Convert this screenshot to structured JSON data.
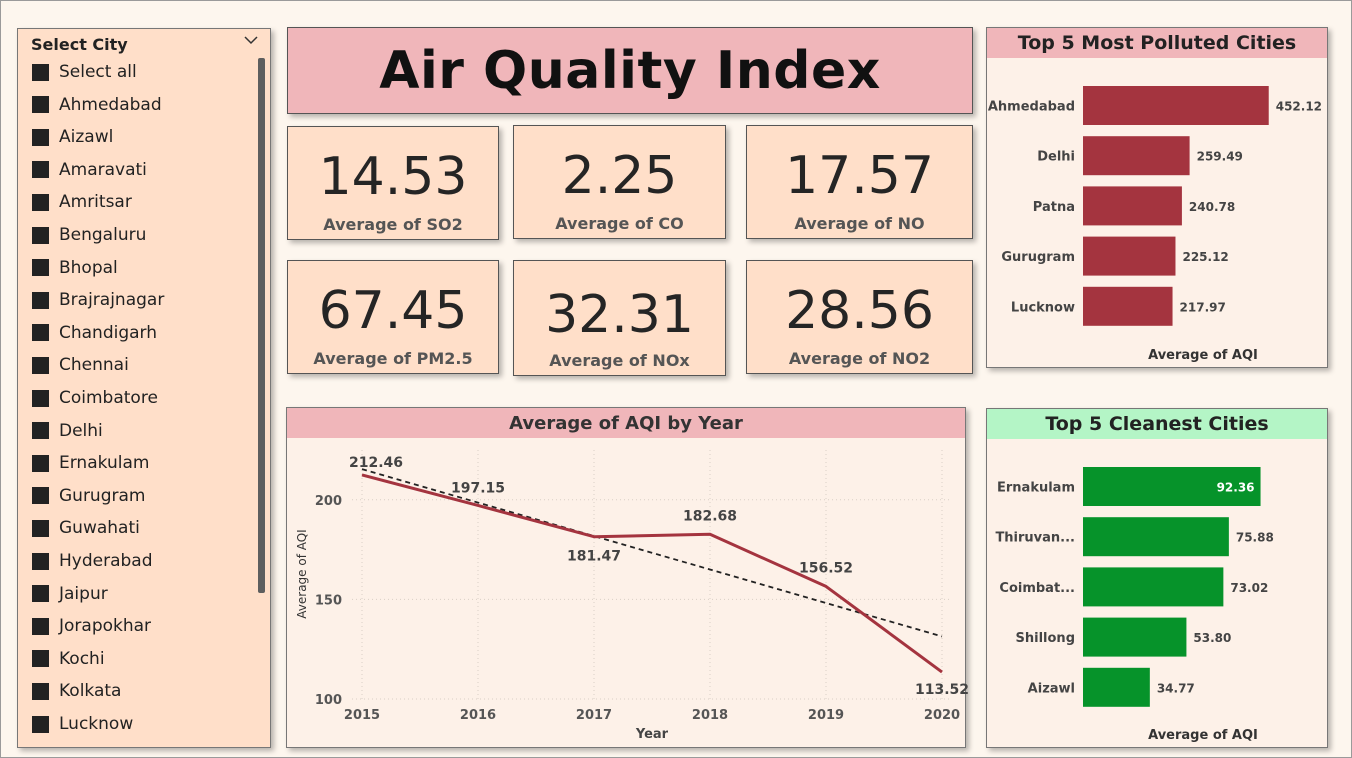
{
  "slicer": {
    "title": "Select City",
    "items": [
      "Select all",
      "Ahmedabad",
      "Aizawl",
      "Amaravati",
      "Amritsar",
      "Bengaluru",
      "Bhopal",
      "Brajrajnagar",
      "Chandigarh",
      "Chennai",
      "Coimbatore",
      "Delhi",
      "Ernakulam",
      "Gurugram",
      "Guwahati",
      "Hyderabad",
      "Jaipur",
      "Jorapokhar",
      "Kochi",
      "Kolkata",
      "Lucknow"
    ]
  },
  "title": "Air Quality Index",
  "kpis": [
    {
      "value": "14.53",
      "caption": "Average of SO2"
    },
    {
      "value": "2.25",
      "caption": "Average of CO"
    },
    {
      "value": "17.57",
      "caption": "Average of NO"
    },
    {
      "value": "67.45",
      "caption": "Average of PM2.5"
    },
    {
      "value": "32.31",
      "caption": "Average of NOx"
    },
    {
      "value": "28.56",
      "caption": "Average of NO2"
    }
  ],
  "colors": {
    "polluted": "#a4343f",
    "clean": "#06932a",
    "line": "#a4343f",
    "title_bg": "#f0b6ba",
    "clean_head": "#b4f5c6",
    "card_bg": "#ffdfc9"
  },
  "chart_data": [
    {
      "type": "bar",
      "title": "Top 5 Most Polluted Cities",
      "orientation": "horizontal",
      "categories": [
        "Ahmedabad",
        "Delhi",
        "Patna",
        "Gurugram",
        "Lucknow"
      ],
      "values": [
        452.12,
        259.49,
        240.78,
        225.12,
        217.97
      ],
      "labels": [
        "452.12",
        "259.49",
        "240.78",
        "225.12",
        "217.97"
      ],
      "xlabel": "Average of AQI"
    },
    {
      "type": "bar",
      "title": "Top 5 Cleanest Cities",
      "orientation": "horizontal",
      "categories": [
        "Ernakulam",
        "Thiruvan...",
        "Coimbat...",
        "Shillong",
        "Aizawl"
      ],
      "values": [
        92.36,
        75.88,
        73.02,
        53.8,
        34.77
      ],
      "labels": [
        "92.36",
        "75.88",
        "73.02",
        "53.80",
        "34.77"
      ],
      "xlabel": "Average of AQI"
    },
    {
      "type": "line",
      "title": "Average of AQI by Year",
      "x": [
        2015,
        2016,
        2017,
        2018,
        2019,
        2020
      ],
      "values": [
        212.46,
        197.15,
        181.47,
        182.68,
        156.52,
        113.52
      ],
      "labels": [
        "212.46",
        "197.15",
        "181.47",
        "182.68",
        "156.52",
        "113.52"
      ],
      "trendline": [
        215.4,
        198.6,
        181.8,
        165.0,
        148.2,
        131.4
      ],
      "xlabel": "Year",
      "ylabel": "Average of AQI",
      "yticks": [
        100,
        150,
        200
      ],
      "ylim": [
        100,
        225
      ],
      "grid": true
    }
  ]
}
